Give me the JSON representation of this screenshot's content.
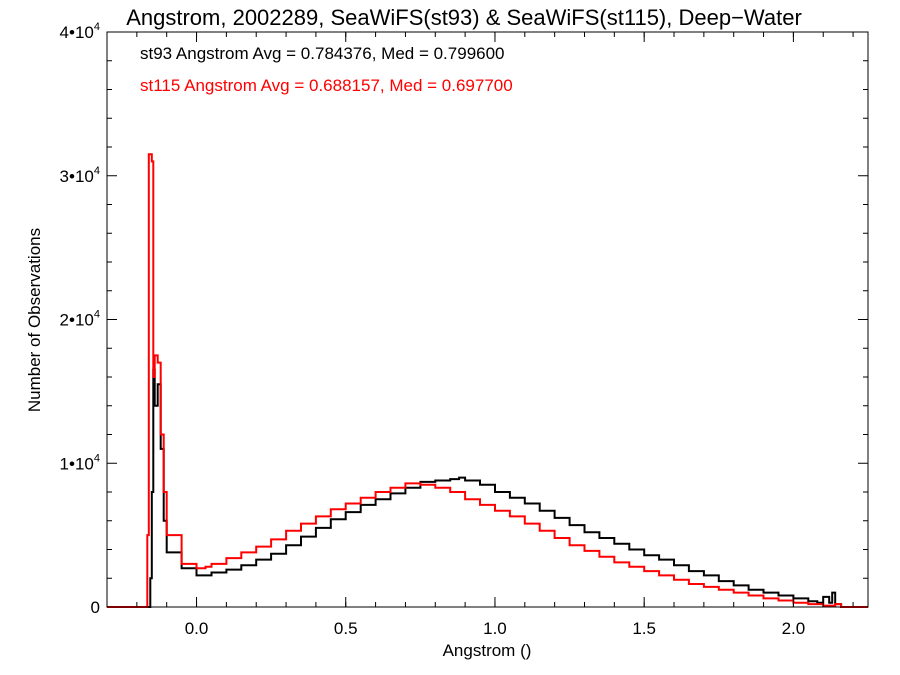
{
  "chart_data": {
    "type": "line",
    "title": "Angstrom, 2002289, SeaWiFS(st93) & SeaWiFS(st115), Deep−Water",
    "xlabel": "Angstrom ()",
    "ylabel": "Number of Observations",
    "xlim": [
      -0.3,
      2.25
    ],
    "ylim": [
      0,
      40000
    ],
    "x_ticks": [
      {
        "value": 0.0,
        "label": "0.0"
      },
      {
        "value": 0.5,
        "label": "0.5"
      },
      {
        "value": 1.0,
        "label": "1.0"
      },
      {
        "value": 1.5,
        "label": "1.5"
      },
      {
        "value": 2.0,
        "label": "2.0"
      }
    ],
    "y_ticks": [
      {
        "value": 0,
        "base": "0",
        "exp": ""
      },
      {
        "value": 10000,
        "base": "1•10",
        "exp": "4"
      },
      {
        "value": 20000,
        "base": "2•10",
        "exp": "4"
      },
      {
        "value": 30000,
        "base": "3•10",
        "exp": "4"
      },
      {
        "value": 40000,
        "base": "4•10",
        "exp": "4"
      }
    ],
    "grid": false,
    "annotations": [
      {
        "text": "st93 Angstrom Avg = 0.784376, Med = 0.799600",
        "color": "#000000"
      },
      {
        "text": "st115 Angstrom Avg = 0.688157, Med = 0.697700",
        "color": "#ff0000"
      }
    ],
    "series": [
      {
        "color": "#000000",
        "points": [
          [
            -0.35,
            0
          ],
          [
            -0.16,
            0
          ],
          [
            -0.155,
            2000
          ],
          [
            -0.15,
            8000
          ],
          [
            -0.145,
            16500
          ],
          [
            -0.14,
            14000
          ],
          [
            -0.13,
            15500
          ],
          [
            -0.12,
            11000
          ],
          [
            -0.11,
            6000
          ],
          [
            -0.1,
            3800
          ],
          [
            -0.05,
            2700
          ],
          [
            0.0,
            2200
          ],
          [
            0.05,
            2400
          ],
          [
            0.1,
            2600
          ],
          [
            0.15,
            2900
          ],
          [
            0.2,
            3300
          ],
          [
            0.25,
            3700
          ],
          [
            0.3,
            4300
          ],
          [
            0.35,
            4900
          ],
          [
            0.4,
            5500
          ],
          [
            0.45,
            6100
          ],
          [
            0.5,
            6600
          ],
          [
            0.55,
            7100
          ],
          [
            0.6,
            7500
          ],
          [
            0.65,
            7900
          ],
          [
            0.7,
            8300
          ],
          [
            0.75,
            8700
          ],
          [
            0.8,
            8800
          ],
          [
            0.85,
            8900
          ],
          [
            0.88,
            9000
          ],
          [
            0.9,
            8800
          ],
          [
            0.95,
            8500
          ],
          [
            1.0,
            8000
          ],
          [
            1.05,
            7600
          ],
          [
            1.1,
            7200
          ],
          [
            1.15,
            6700
          ],
          [
            1.2,
            6200
          ],
          [
            1.25,
            5700
          ],
          [
            1.3,
            5200
          ],
          [
            1.35,
            4800
          ],
          [
            1.4,
            4400
          ],
          [
            1.45,
            4000
          ],
          [
            1.5,
            3600
          ],
          [
            1.55,
            3300
          ],
          [
            1.6,
            2900
          ],
          [
            1.65,
            2500
          ],
          [
            1.7,
            2200
          ],
          [
            1.75,
            1800
          ],
          [
            1.8,
            1500
          ],
          [
            1.85,
            1200
          ],
          [
            1.9,
            1000
          ],
          [
            1.95,
            800
          ],
          [
            2.0,
            600
          ],
          [
            2.05,
            400
          ],
          [
            2.08,
            300
          ],
          [
            2.1,
            700
          ],
          [
            2.12,
            300
          ],
          [
            2.13,
            1000
          ],
          [
            2.14,
            200
          ],
          [
            2.16,
            0
          ],
          [
            2.3,
            0
          ]
        ]
      },
      {
        "color": "#ff0000",
        "points": [
          [
            -0.35,
            0
          ],
          [
            -0.17,
            0
          ],
          [
            -0.165,
            5000
          ],
          [
            -0.16,
            31500
          ],
          [
            -0.15,
            31000
          ],
          [
            -0.145,
            16000
          ],
          [
            -0.14,
            17500
          ],
          [
            -0.13,
            17000
          ],
          [
            -0.12,
            12000
          ],
          [
            -0.11,
            8000
          ],
          [
            -0.1,
            5000
          ],
          [
            -0.05,
            3000
          ],
          [
            0.0,
            2700
          ],
          [
            0.03,
            2800
          ],
          [
            0.05,
            3000
          ],
          [
            0.1,
            3400
          ],
          [
            0.15,
            3800
          ],
          [
            0.2,
            4200
          ],
          [
            0.25,
            4700
          ],
          [
            0.3,
            5300
          ],
          [
            0.35,
            5800
          ],
          [
            0.4,
            6300
          ],
          [
            0.45,
            6800
          ],
          [
            0.5,
            7200
          ],
          [
            0.55,
            7600
          ],
          [
            0.6,
            8000
          ],
          [
            0.65,
            8300
          ],
          [
            0.7,
            8600
          ],
          [
            0.75,
            8500
          ],
          [
            0.8,
            8300
          ],
          [
            0.85,
            8000
          ],
          [
            0.9,
            7500
          ],
          [
            0.95,
            7100
          ],
          [
            1.0,
            6700
          ],
          [
            1.05,
            6300
          ],
          [
            1.1,
            5800
          ],
          [
            1.15,
            5300
          ],
          [
            1.2,
            4800
          ],
          [
            1.25,
            4300
          ],
          [
            1.3,
            3900
          ],
          [
            1.35,
            3500
          ],
          [
            1.4,
            3100
          ],
          [
            1.45,
            2800
          ],
          [
            1.5,
            2500
          ],
          [
            1.55,
            2200
          ],
          [
            1.6,
            1900
          ],
          [
            1.65,
            1600
          ],
          [
            1.7,
            1400
          ],
          [
            1.75,
            1200
          ],
          [
            1.8,
            1000
          ],
          [
            1.85,
            800
          ],
          [
            1.9,
            600
          ],
          [
            1.95,
            450
          ],
          [
            2.0,
            300
          ],
          [
            2.05,
            200
          ],
          [
            2.1,
            100
          ],
          [
            2.14,
            200
          ],
          [
            2.16,
            0
          ],
          [
            2.3,
            0
          ]
        ]
      }
    ]
  }
}
